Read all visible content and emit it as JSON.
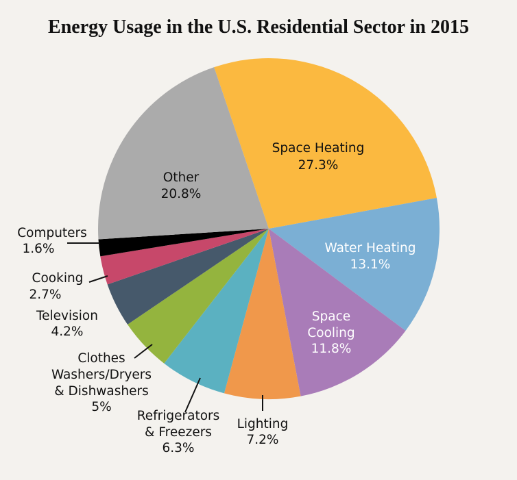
{
  "chart_data": {
    "type": "pie",
    "title": "Energy Usage in the U.S. Residential Sector in 2015",
    "start_angle_deg": -18.7,
    "direction": "clockwise",
    "slices": [
      {
        "name": "Space Heating",
        "label_lines": [
          "Space Heating"
        ],
        "value": 27.3,
        "value_label": "27.3%",
        "color": "#FBB940"
      },
      {
        "name": "Water Heating",
        "label_lines": [
          "Water Heating"
        ],
        "value": 13.1,
        "value_label": "13.1%",
        "color": "#7BAFD4"
      },
      {
        "name": "Space Cooling",
        "label_lines": [
          "Space",
          "Cooling"
        ],
        "value": 11.8,
        "value_label": "11.8%",
        "color": "#A97CB8"
      },
      {
        "name": "Lighting",
        "label_lines": [
          "Lighting"
        ],
        "value": 7.2,
        "value_label": "7.2%",
        "color": "#F0984B"
      },
      {
        "name": "Refrigerators & Freezers",
        "label_lines": [
          "Refrigerators",
          "& Freezers"
        ],
        "value": 6.3,
        "value_label": "6.3%",
        "color": "#5BB1C1"
      },
      {
        "name": "Clothes Washers/Dryers & Dishwashers",
        "label_lines": [
          "Clothes",
          "Washers/Dryers",
          "& Dishwashers"
        ],
        "value": 5,
        "value_label": "5%",
        "color": "#94B43E"
      },
      {
        "name": "Television",
        "label_lines": [
          "Television"
        ],
        "value": 4.2,
        "value_label": "4.2%",
        "color": "#46596B"
      },
      {
        "name": "Cooking",
        "label_lines": [
          "Cooking"
        ],
        "value": 2.7,
        "value_label": "2.7%",
        "color": "#C7486A"
      },
      {
        "name": "Computers",
        "label_lines": [
          "Computers"
        ],
        "value": 1.6,
        "value_label": "1.6%",
        "color": "#000000"
      },
      {
        "name": "Other",
        "label_lines": [
          "Other"
        ],
        "value": 20.8,
        "value_label": "20.8%",
        "color": "#ABABAB"
      }
    ]
  }
}
